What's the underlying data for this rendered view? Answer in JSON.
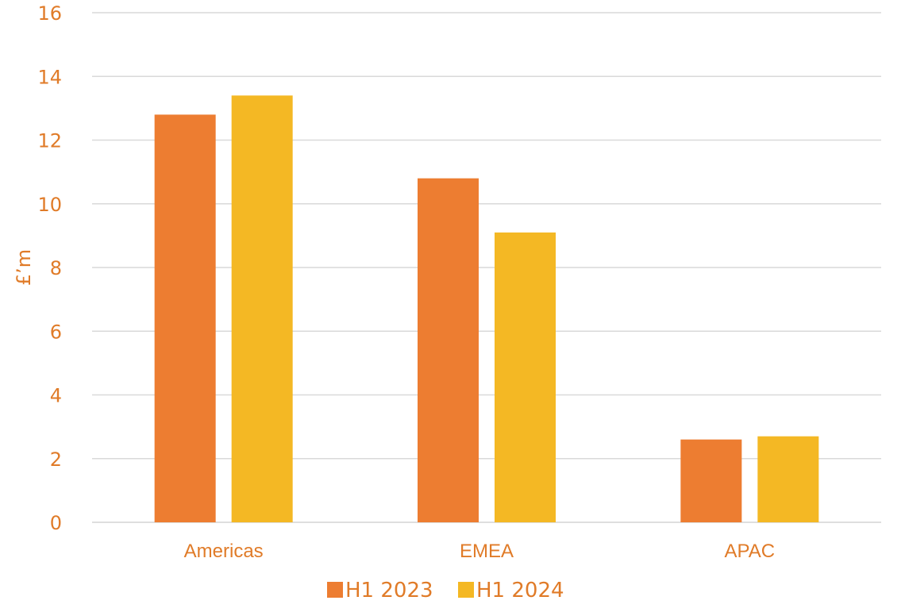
{
  "chart_data": {
    "type": "bar",
    "categories": [
      "Americas",
      "EMEA",
      "APAC"
    ],
    "series": [
      {
        "name": "H1 2023",
        "values": [
          12.8,
          10.8,
          2.6
        ],
        "color": "#ED7D31"
      },
      {
        "name": "H1 2024",
        "values": [
          13.4,
          9.1,
          2.7
        ],
        "color": "#F4B824"
      }
    ],
    "title": "",
    "xlabel": "",
    "ylabel": "£’m",
    "ylim": [
      0,
      16
    ],
    "yticks": [
      "0",
      "2",
      "4",
      "6",
      "8",
      "10",
      "12",
      "14",
      "16"
    ],
    "grid": true,
    "legend_position": "bottom"
  },
  "colors": {
    "axis_text": "#E07B28",
    "category_text": "#E07B28",
    "legend_text": "#E07B28",
    "gridline": "#D9D9D9"
  }
}
